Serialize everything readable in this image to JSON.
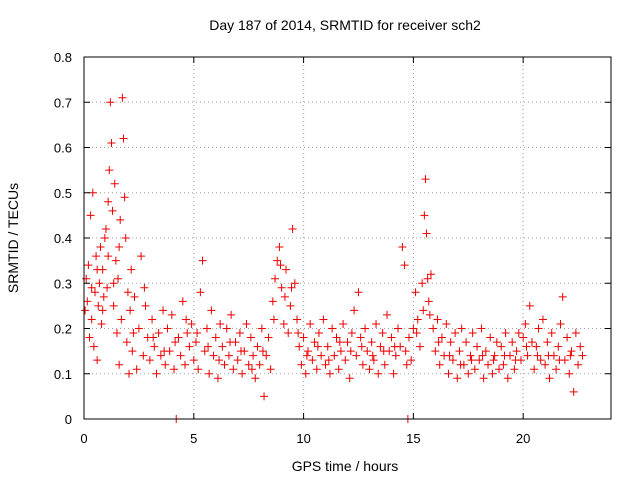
{
  "chart_data": {
    "type": "scatter",
    "title": "Day 187 of 2014, SRMTID for receiver sch2",
    "xlabel": "GPS time / hours",
    "ylabel": "SRMTID / TECUs",
    "xlim": [
      0,
      24
    ],
    "ylim": [
      0,
      0.8
    ],
    "xticks": [
      0,
      5,
      10,
      15,
      20
    ],
    "yticks": [
      0,
      0.1,
      0.2,
      0.3,
      0.4,
      0.5,
      0.6,
      0.7,
      0.8
    ],
    "xtick_labels": [
      "0",
      "5",
      "10",
      "15",
      "20"
    ],
    "ytick_labels": [
      "0",
      "0.1",
      "0.2",
      "0.3",
      "0.4",
      "0.5",
      "0.6",
      "0.7",
      "0.8"
    ],
    "grid": true,
    "marker": "plus",
    "color": "#ee0000",
    "series": [
      {
        "name": "SRMTID",
        "points": [
          [
            0.05,
            0.24
          ],
          [
            0.1,
            0.31
          ],
          [
            0.15,
            0.26
          ],
          [
            0.2,
            0.34
          ],
          [
            0.25,
            0.18
          ],
          [
            0.3,
            0.45
          ],
          [
            0.35,
            0.22
          ],
          [
            0.4,
            0.5
          ],
          [
            0.45,
            0.16
          ],
          [
            0.5,
            0.28
          ],
          [
            0.55,
            0.36
          ],
          [
            0.6,
            0.13
          ],
          [
            0.65,
            0.25
          ],
          [
            0.7,
            0.3
          ],
          [
            0.75,
            0.38
          ],
          [
            0.8,
            0.21
          ],
          [
            0.85,
            0.33
          ],
          [
            0.9,
            0.27
          ],
          [
            0.95,
            0.4
          ],
          [
            1.0,
            0.42
          ],
          [
            1.05,
            0.29
          ],
          [
            1.1,
            0.36
          ],
          [
            1.15,
            0.55
          ],
          [
            1.2,
            0.7
          ],
          [
            1.25,
            0.61
          ],
          [
            1.3,
            0.46
          ],
          [
            1.35,
            0.25
          ],
          [
            1.4,
            0.52
          ],
          [
            1.45,
            0.35
          ],
          [
            1.5,
            0.19
          ],
          [
            1.55,
            0.31
          ],
          [
            1.6,
            0.12
          ],
          [
            1.65,
            0.44
          ],
          [
            1.7,
            0.22
          ],
          [
            1.75,
            0.71
          ],
          [
            1.8,
            0.62
          ],
          [
            1.85,
            0.49
          ],
          [
            1.9,
            0.4
          ],
          [
            1.95,
            0.17
          ],
          [
            2.0,
            0.28
          ],
          [
            2.05,
            0.1
          ],
          [
            2.1,
            0.24
          ],
          [
            2.15,
            0.33
          ],
          [
            2.2,
            0.15
          ],
          [
            2.3,
            0.27
          ],
          [
            2.4,
            0.11
          ],
          [
            2.5,
            0.2
          ],
          [
            2.6,
            0.36
          ],
          [
            2.7,
            0.14
          ],
          [
            2.8,
            0.25
          ],
          [
            2.9,
            0.18
          ],
          [
            3.0,
            0.13
          ],
          [
            3.1,
            0.22
          ],
          [
            3.2,
            0.16
          ],
          [
            3.3,
            0.1
          ],
          [
            3.4,
            0.19
          ],
          [
            3.5,
            0.14
          ],
          [
            3.6,
            0.24
          ],
          [
            3.7,
            0.12
          ],
          [
            3.8,
            0.2
          ],
          [
            3.9,
            0.15
          ],
          [
            4.0,
            0.23
          ],
          [
            4.1,
            0.11
          ],
          [
            4.2,
            0.0
          ],
          [
            4.3,
            0.18
          ],
          [
            4.4,
            0.14
          ],
          [
            4.5,
            0.26
          ],
          [
            4.6,
            0.12
          ],
          [
            4.7,
            0.19
          ],
          [
            4.8,
            0.16
          ],
          [
            4.9,
            0.21
          ],
          [
            5.0,
            0.13
          ],
          [
            5.1,
            0.17
          ],
          [
            5.2,
            0.11
          ],
          [
            5.3,
            0.28
          ],
          [
            5.4,
            0.35
          ],
          [
            5.5,
            0.15
          ],
          [
            5.6,
            0.2
          ],
          [
            5.7,
            0.1
          ],
          [
            5.8,
            0.24
          ],
          [
            5.9,
            0.14
          ],
          [
            6.0,
            0.18
          ],
          [
            6.1,
            0.09
          ],
          [
            6.2,
            0.21
          ],
          [
            6.3,
            0.16
          ],
          [
            6.4,
            0.12
          ],
          [
            6.5,
            0.2
          ],
          [
            6.6,
            0.14
          ],
          [
            6.7,
            0.23
          ],
          [
            6.8,
            0.11
          ],
          [
            6.9,
            0.17
          ],
          [
            7.0,
            0.13
          ],
          [
            7.1,
            0.19
          ],
          [
            7.2,
            0.1
          ],
          [
            7.3,
            0.15
          ],
          [
            7.4,
            0.21
          ],
          [
            7.5,
            0.12
          ],
          [
            7.6,
            0.18
          ],
          [
            7.7,
            0.14
          ],
          [
            7.8,
            0.09
          ],
          [
            7.9,
            0.16
          ],
          [
            8.0,
            0.12
          ],
          [
            8.1,
            0.2
          ],
          [
            8.2,
            0.05
          ],
          [
            8.3,
            0.14
          ],
          [
            8.4,
            0.18
          ],
          [
            8.5,
            0.11
          ],
          [
            8.6,
            0.26
          ],
          [
            8.7,
            0.31
          ],
          [
            8.8,
            0.35
          ],
          [
            8.9,
            0.38
          ],
          [
            9.0,
            0.29
          ],
          [
            9.1,
            0.21
          ],
          [
            9.2,
            0.33
          ],
          [
            9.3,
            0.19
          ],
          [
            9.4,
            0.25
          ],
          [
            9.5,
            0.42
          ],
          [
            9.6,
            0.3
          ],
          [
            9.7,
            0.22
          ],
          [
            9.8,
            0.16
          ],
          [
            9.9,
            0.12
          ],
          [
            10.0,
            0.18
          ],
          [
            10.1,
            0.1
          ],
          [
            10.2,
            0.15
          ],
          [
            10.3,
            0.21
          ],
          [
            10.4,
            0.13
          ],
          [
            10.5,
            0.17
          ],
          [
            10.6,
            0.11
          ],
          [
            10.7,
            0.19
          ],
          [
            10.8,
            0.14
          ],
          [
            10.9,
            0.22
          ],
          [
            11.0,
            0.12
          ],
          [
            11.1,
            0.16
          ],
          [
            11.2,
            0.1
          ],
          [
            11.3,
            0.2
          ],
          [
            11.4,
            0.14
          ],
          [
            11.5,
            0.18
          ],
          [
            11.6,
            0.11
          ],
          [
            11.7,
            0.15
          ],
          [
            11.8,
            0.21
          ],
          [
            11.9,
            0.13
          ],
          [
            12.0,
            0.17
          ],
          [
            12.1,
            0.09
          ],
          [
            12.2,
            0.19
          ],
          [
            12.3,
            0.24
          ],
          [
            12.4,
            0.14
          ],
          [
            12.5,
            0.28
          ],
          [
            12.6,
            0.18
          ],
          [
            12.7,
            0.12
          ],
          [
            12.8,
            0.2
          ],
          [
            12.9,
            0.15
          ],
          [
            13.0,
            0.11
          ],
          [
            13.1,
            0.17
          ],
          [
            13.2,
            0.13
          ],
          [
            13.3,
            0.21
          ],
          [
            13.4,
            0.1
          ],
          [
            13.5,
            0.16
          ],
          [
            13.6,
            0.19
          ],
          [
            13.7,
            0.12
          ],
          [
            13.8,
            0.23
          ],
          [
            13.9,
            0.15
          ],
          [
            14.0,
            0.18
          ],
          [
            14.1,
            0.1
          ],
          [
            14.2,
            0.14
          ],
          [
            14.3,
            0.2
          ],
          [
            14.4,
            0.16
          ],
          [
            14.5,
            0.38
          ],
          [
            14.6,
            0.34
          ],
          [
            14.7,
            0.12
          ],
          [
            14.75,
            0.0
          ],
          [
            14.8,
            0.18
          ],
          [
            14.9,
            0.13
          ],
          [
            15.0,
            0.2
          ],
          [
            15.1,
            0.28
          ],
          [
            15.2,
            0.22
          ],
          [
            15.3,
            0.16
          ],
          [
            15.4,
            0.3
          ],
          [
            15.5,
            0.45
          ],
          [
            15.55,
            0.53
          ],
          [
            15.6,
            0.41
          ],
          [
            15.65,
            0.31
          ],
          [
            15.7,
            0.26
          ],
          [
            15.8,
            0.32
          ],
          [
            15.9,
            0.2
          ],
          [
            16.0,
            0.15
          ],
          [
            16.1,
            0.22
          ],
          [
            16.2,
            0.12
          ],
          [
            16.3,
            0.18
          ],
          [
            16.4,
            0.14
          ],
          [
            16.5,
            0.21
          ],
          [
            16.6,
            0.1
          ],
          [
            16.7,
            0.17
          ],
          [
            16.8,
            0.13
          ],
          [
            16.9,
            0.19
          ],
          [
            17.0,
            0.09
          ],
          [
            17.1,
            0.15
          ],
          [
            17.2,
            0.2
          ],
          [
            17.3,
            0.12
          ],
          [
            17.4,
            0.17
          ],
          [
            17.5,
            0.1
          ],
          [
            17.6,
            0.14
          ],
          [
            17.7,
            0.19
          ],
          [
            17.8,
            0.11
          ],
          [
            17.9,
            0.16
          ],
          [
            18.0,
            0.13
          ],
          [
            18.1,
            0.2
          ],
          [
            18.2,
            0.09
          ],
          [
            18.3,
            0.15
          ],
          [
            18.4,
            0.12
          ],
          [
            18.5,
            0.18
          ],
          [
            18.6,
            0.1
          ],
          [
            18.7,
            0.14
          ],
          [
            18.8,
            0.17
          ],
          [
            18.9,
            0.11
          ],
          [
            19.0,
            0.16
          ],
          [
            19.1,
            0.12
          ],
          [
            19.2,
            0.19
          ],
          [
            19.3,
            0.09
          ],
          [
            19.4,
            0.14
          ],
          [
            19.5,
            0.17
          ],
          [
            19.6,
            0.11
          ],
          [
            19.7,
            0.15
          ],
          [
            19.8,
            0.19
          ],
          [
            19.9,
            0.13
          ],
          [
            20.0,
            0.18
          ],
          [
            20.1,
            0.21
          ],
          [
            20.2,
            0.14
          ],
          [
            20.3,
            0.25
          ],
          [
            20.4,
            0.17
          ],
          [
            20.5,
            0.11
          ],
          [
            20.6,
            0.16
          ],
          [
            20.7,
            0.2
          ],
          [
            20.8,
            0.13
          ],
          [
            20.9,
            0.22
          ],
          [
            21.0,
            0.12
          ],
          [
            21.1,
            0.17
          ],
          [
            21.2,
            0.09
          ],
          [
            21.3,
            0.19
          ],
          [
            21.4,
            0.14
          ],
          [
            21.5,
            0.11
          ],
          [
            21.6,
            0.16
          ],
          [
            21.7,
            0.21
          ],
          [
            21.8,
            0.27
          ],
          [
            21.9,
            0.13
          ],
          [
            22.0,
            0.18
          ],
          [
            22.1,
            0.1
          ],
          [
            22.2,
            0.15
          ],
          [
            22.3,
            0.06
          ],
          [
            22.4,
            0.19
          ],
          [
            22.5,
            0.12
          ],
          [
            22.6,
            0.16
          ],
          [
            22.7,
            0.14
          ],
          [
            0.35,
            0.29
          ],
          [
            0.6,
            0.33
          ],
          [
            0.85,
            0.24
          ],
          [
            1.1,
            0.48
          ],
          [
            1.35,
            0.3
          ],
          [
            1.6,
            0.38
          ],
          [
            2.25,
            0.19
          ],
          [
            2.75,
            0.29
          ],
          [
            3.15,
            0.18
          ],
          [
            3.65,
            0.15
          ],
          [
            4.15,
            0.17
          ],
          [
            4.65,
            0.22
          ],
          [
            5.15,
            0.19
          ],
          [
            5.65,
            0.16
          ],
          [
            6.15,
            0.13
          ],
          [
            6.65,
            0.17
          ],
          [
            7.15,
            0.15
          ],
          [
            7.65,
            0.11
          ],
          [
            8.15,
            0.15
          ],
          [
            8.65,
            0.22
          ],
          [
            8.95,
            0.34
          ],
          [
            9.15,
            0.27
          ],
          [
            9.45,
            0.29
          ],
          [
            9.75,
            0.19
          ],
          [
            10.15,
            0.14
          ],
          [
            10.65,
            0.16
          ],
          [
            11.15,
            0.13
          ],
          [
            11.65,
            0.17
          ],
          [
            12.15,
            0.15
          ],
          [
            12.65,
            0.16
          ],
          [
            13.15,
            0.14
          ],
          [
            13.65,
            0.15
          ],
          [
            14.15,
            0.16
          ],
          [
            14.65,
            0.15
          ],
          [
            15.15,
            0.19
          ],
          [
            15.45,
            0.24
          ],
          [
            15.75,
            0.23
          ],
          [
            16.15,
            0.17
          ],
          [
            16.65,
            0.14
          ],
          [
            17.15,
            0.12
          ],
          [
            17.65,
            0.13
          ],
          [
            18.15,
            0.14
          ],
          [
            18.65,
            0.13
          ],
          [
            19.15,
            0.14
          ],
          [
            19.65,
            0.13
          ],
          [
            20.15,
            0.16
          ],
          [
            20.65,
            0.14
          ],
          [
            21.15,
            0.14
          ],
          [
            21.65,
            0.13
          ],
          [
            22.15,
            0.14
          ]
        ]
      }
    ]
  }
}
